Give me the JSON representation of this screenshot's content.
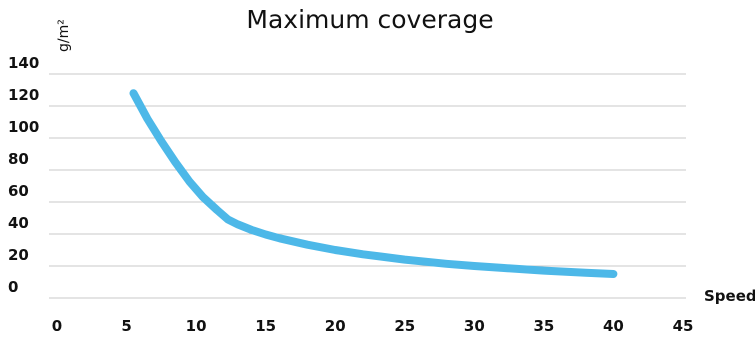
{
  "chart_data": {
    "type": "line",
    "title": "Maximum coverage",
    "xlabel": "Speed",
    "ylabel": "g/m²",
    "xlim": [
      0,
      45
    ],
    "ylim": [
      0,
      140
    ],
    "xticks": [
      0,
      5,
      10,
      15,
      20,
      25,
      30,
      35,
      40,
      45
    ],
    "yticks": [
      0,
      20,
      40,
      60,
      80,
      100,
      120,
      140
    ],
    "grid": true,
    "legend": "none",
    "colors": {
      "line": "#4db8e8",
      "grid": "#c8c8c8",
      "text": "#111111"
    },
    "series": [
      {
        "x": [
          5.5,
          6.5,
          7.5,
          8.5,
          9.5,
          10.5,
          11.5,
          12.3,
          13,
          14,
          15,
          16,
          18,
          20,
          22,
          25,
          28,
          30,
          32,
          35,
          38,
          40
        ],
        "y": [
          128,
          112,
          98,
          85,
          73,
          63,
          55,
          49,
          46,
          42.5,
          39.7,
          37.3,
          33.3,
          30,
          27.3,
          24,
          21.4,
          20,
          18.8,
          17.1,
          15.8,
          15
        ]
      }
    ]
  }
}
